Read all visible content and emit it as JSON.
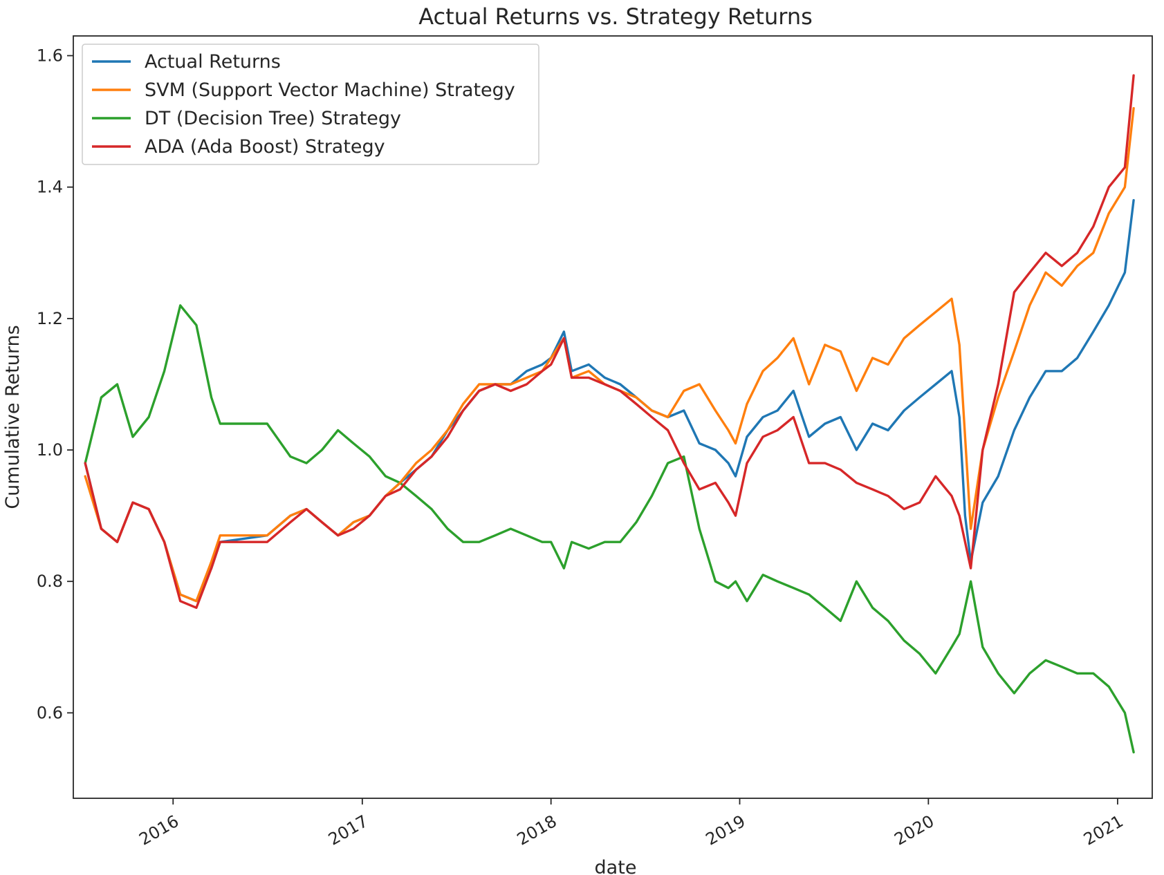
{
  "chart_data": {
    "type": "line",
    "title": "Actual Returns vs. Strategy Returns",
    "xlabel": "date",
    "ylabel": "Cumulative Returns",
    "xlim": [
      "2015-06-22",
      "2021-03-09"
    ],
    "ylim": [
      0.47,
      1.63
    ],
    "x_ticks": [
      "2016",
      "2017",
      "2018",
      "2019",
      "2020",
      "2021"
    ],
    "y_ticks": [
      "0.6",
      "0.8",
      "1.0",
      "1.2",
      "1.4",
      "1.6"
    ],
    "grid": false,
    "legend_position": "upper-left",
    "series": [
      {
        "name": "Actual Returns",
        "color": "#1f77b4",
        "x": [
          "2015-07-15",
          "2015-08-15",
          "2015-09-15",
          "2015-10-15",
          "2015-11-15",
          "2015-12-15",
          "2016-01-15",
          "2016-02-15",
          "2016-03-15",
          "2016-04-01",
          "2016-07-01",
          "2016-08-15",
          "2016-09-15",
          "2016-10-15",
          "2016-11-15",
          "2016-12-15",
          "2017-01-15",
          "2017-02-15",
          "2017-03-15",
          "2017-04-15",
          "2017-05-15",
          "2017-06-15",
          "2017-07-15",
          "2017-08-15",
          "2017-09-15",
          "2017-10-15",
          "2017-11-15",
          "2017-12-15",
          "2018-01-01",
          "2018-01-26",
          "2018-02-10",
          "2018-03-15",
          "2018-04-15",
          "2018-05-15",
          "2018-06-15",
          "2018-07-15",
          "2018-08-15",
          "2018-09-15",
          "2018-10-15",
          "2018-11-15",
          "2018-12-10",
          "2018-12-24",
          "2019-01-15",
          "2019-02-15",
          "2019-03-15",
          "2019-04-15",
          "2019-05-15",
          "2019-06-15",
          "2019-07-15",
          "2019-08-15",
          "2019-09-15",
          "2019-10-15",
          "2019-11-15",
          "2019-12-15",
          "2020-01-15",
          "2020-02-15",
          "2020-03-01",
          "2020-03-12",
          "2020-03-23",
          "2020-04-15",
          "2020-05-15",
          "2020-06-15",
          "2020-07-15",
          "2020-08-15",
          "2020-09-15",
          "2020-10-15",
          "2020-11-15",
          "2020-12-15",
          "2021-01-15",
          "2021-02-01"
        ],
        "y": [
          0.98,
          0.88,
          0.86,
          0.92,
          0.91,
          0.86,
          0.78,
          0.77,
          0.82,
          0.86,
          0.87,
          0.9,
          0.91,
          0.89,
          0.87,
          0.89,
          0.9,
          0.93,
          0.95,
          0.97,
          0.99,
          1.03,
          1.06,
          1.09,
          1.1,
          1.1,
          1.12,
          1.13,
          1.14,
          1.18,
          1.12,
          1.13,
          1.11,
          1.1,
          1.08,
          1.06,
          1.05,
          1.06,
          1.01,
          1.0,
          0.98,
          0.96,
          1.02,
          1.05,
          1.06,
          1.09,
          1.02,
          1.04,
          1.05,
          1.0,
          1.04,
          1.03,
          1.06,
          1.08,
          1.1,
          1.12,
          1.05,
          0.9,
          0.83,
          0.92,
          0.96,
          1.03,
          1.08,
          1.12,
          1.12,
          1.14,
          1.18,
          1.22,
          1.27,
          1.38
        ]
      },
      {
        "name": "SVM (Support Vector Machine) Strategy",
        "color": "#ff7f0e",
        "x": [
          "2015-07-15",
          "2015-08-15",
          "2015-09-15",
          "2015-10-15",
          "2015-11-15",
          "2015-12-15",
          "2016-01-15",
          "2016-02-15",
          "2016-03-15",
          "2016-04-01",
          "2016-07-01",
          "2016-08-15",
          "2016-09-15",
          "2016-10-15",
          "2016-11-15",
          "2016-12-15",
          "2017-01-15",
          "2017-02-15",
          "2017-03-15",
          "2017-04-15",
          "2017-05-15",
          "2017-06-15",
          "2017-07-15",
          "2017-08-15",
          "2017-09-15",
          "2017-10-15",
          "2017-11-15",
          "2017-12-15",
          "2018-01-01",
          "2018-01-26",
          "2018-02-10",
          "2018-03-15",
          "2018-04-15",
          "2018-05-15",
          "2018-06-15",
          "2018-07-15",
          "2018-08-15",
          "2018-09-15",
          "2018-10-15",
          "2018-11-15",
          "2018-12-10",
          "2018-12-24",
          "2019-01-15",
          "2019-02-15",
          "2019-03-15",
          "2019-04-15",
          "2019-05-15",
          "2019-06-15",
          "2019-07-15",
          "2019-08-15",
          "2019-09-15",
          "2019-10-15",
          "2019-11-15",
          "2019-12-15",
          "2020-01-15",
          "2020-02-15",
          "2020-03-01",
          "2020-03-12",
          "2020-03-23",
          "2020-04-15",
          "2020-05-15",
          "2020-06-15",
          "2020-07-15",
          "2020-08-15",
          "2020-09-15",
          "2020-10-15",
          "2020-11-15",
          "2020-12-15",
          "2021-01-15",
          "2021-02-01"
        ],
        "y": [
          0.96,
          0.88,
          0.86,
          0.92,
          0.91,
          0.86,
          0.78,
          0.77,
          0.83,
          0.87,
          0.87,
          0.9,
          0.91,
          0.89,
          0.87,
          0.89,
          0.9,
          0.93,
          0.95,
          0.98,
          1.0,
          1.03,
          1.07,
          1.1,
          1.1,
          1.1,
          1.11,
          1.12,
          1.14,
          1.17,
          1.11,
          1.12,
          1.1,
          1.09,
          1.08,
          1.06,
          1.05,
          1.09,
          1.1,
          1.06,
          1.03,
          1.01,
          1.07,
          1.12,
          1.14,
          1.17,
          1.1,
          1.16,
          1.15,
          1.09,
          1.14,
          1.13,
          1.17,
          1.19,
          1.21,
          1.23,
          1.16,
          1.02,
          0.88,
          1.0,
          1.08,
          1.15,
          1.22,
          1.27,
          1.25,
          1.28,
          1.3,
          1.36,
          1.4,
          1.52
        ]
      },
      {
        "name": "DT (Decision Tree) Strategy",
        "color": "#2ca02c",
        "x": [
          "2015-07-15",
          "2015-08-15",
          "2015-09-15",
          "2015-10-15",
          "2015-11-15",
          "2015-12-15",
          "2016-01-15",
          "2016-02-15",
          "2016-03-15",
          "2016-04-01",
          "2016-07-01",
          "2016-08-15",
          "2016-09-15",
          "2016-10-15",
          "2016-11-15",
          "2016-12-15",
          "2017-01-15",
          "2017-02-15",
          "2017-03-15",
          "2017-04-15",
          "2017-05-15",
          "2017-06-15",
          "2017-07-15",
          "2017-08-15",
          "2017-09-15",
          "2017-10-15",
          "2017-11-15",
          "2017-12-15",
          "2018-01-01",
          "2018-01-26",
          "2018-02-10",
          "2018-03-15",
          "2018-04-15",
          "2018-05-15",
          "2018-06-15",
          "2018-07-15",
          "2018-08-15",
          "2018-09-15",
          "2018-10-15",
          "2018-11-15",
          "2018-12-10",
          "2018-12-24",
          "2019-01-15",
          "2019-02-15",
          "2019-03-15",
          "2019-04-15",
          "2019-05-15",
          "2019-06-15",
          "2019-07-15",
          "2019-08-15",
          "2019-09-15",
          "2019-10-15",
          "2019-11-15",
          "2019-12-15",
          "2020-01-15",
          "2020-02-15",
          "2020-03-01",
          "2020-03-12",
          "2020-03-23",
          "2020-04-15",
          "2020-05-15",
          "2020-06-15",
          "2020-07-15",
          "2020-08-15",
          "2020-09-15",
          "2020-10-15",
          "2020-11-15",
          "2020-12-15",
          "2021-01-15",
          "2021-02-01"
        ],
        "y": [
          0.98,
          1.08,
          1.1,
          1.02,
          1.05,
          1.12,
          1.22,
          1.19,
          1.08,
          1.04,
          1.04,
          0.99,
          0.98,
          1.0,
          1.03,
          1.01,
          0.99,
          0.96,
          0.95,
          0.93,
          0.91,
          0.88,
          0.86,
          0.86,
          0.87,
          0.88,
          0.87,
          0.86,
          0.86,
          0.82,
          0.86,
          0.85,
          0.86,
          0.86,
          0.89,
          0.93,
          0.98,
          0.99,
          0.88,
          0.8,
          0.79,
          0.8,
          0.77,
          0.81,
          0.8,
          0.79,
          0.78,
          0.76,
          0.74,
          0.8,
          0.76,
          0.74,
          0.71,
          0.69,
          0.66,
          0.7,
          0.72,
          0.76,
          0.8,
          0.7,
          0.66,
          0.63,
          0.66,
          0.68,
          0.67,
          0.66,
          0.66,
          0.64,
          0.6,
          0.54
        ]
      },
      {
        "name": "ADA (Ada Boost) Strategy",
        "color": "#d62728",
        "x": [
          "2015-07-15",
          "2015-08-15",
          "2015-09-15",
          "2015-10-15",
          "2015-11-15",
          "2015-12-15",
          "2016-01-15",
          "2016-02-15",
          "2016-03-15",
          "2016-04-01",
          "2016-07-01",
          "2016-08-15",
          "2016-09-15",
          "2016-10-15",
          "2016-11-15",
          "2016-12-15",
          "2017-01-15",
          "2017-02-15",
          "2017-03-15",
          "2017-04-15",
          "2017-05-15",
          "2017-06-15",
          "2017-07-15",
          "2017-08-15",
          "2017-09-15",
          "2017-10-15",
          "2017-11-15",
          "2017-12-15",
          "2018-01-01",
          "2018-01-26",
          "2018-02-10",
          "2018-03-15",
          "2018-04-15",
          "2018-05-15",
          "2018-06-15",
          "2018-07-15",
          "2018-08-15",
          "2018-09-15",
          "2018-10-15",
          "2018-11-15",
          "2018-12-10",
          "2018-12-24",
          "2019-01-15",
          "2019-02-15",
          "2019-03-15",
          "2019-04-15",
          "2019-05-15",
          "2019-06-15",
          "2019-07-15",
          "2019-08-15",
          "2019-09-15",
          "2019-10-15",
          "2019-11-15",
          "2019-12-15",
          "2020-01-15",
          "2020-02-15",
          "2020-03-01",
          "2020-03-12",
          "2020-03-23",
          "2020-04-15",
          "2020-05-15",
          "2020-06-15",
          "2020-07-15",
          "2020-08-15",
          "2020-09-15",
          "2020-10-15",
          "2020-11-15",
          "2020-12-15",
          "2021-01-15",
          "2021-02-01"
        ],
        "y": [
          0.98,
          0.88,
          0.86,
          0.92,
          0.91,
          0.86,
          0.77,
          0.76,
          0.82,
          0.86,
          0.86,
          0.89,
          0.91,
          0.89,
          0.87,
          0.88,
          0.9,
          0.93,
          0.94,
          0.97,
          0.99,
          1.02,
          1.06,
          1.09,
          1.1,
          1.09,
          1.1,
          1.12,
          1.13,
          1.17,
          1.11,
          1.11,
          1.1,
          1.09,
          1.07,
          1.05,
          1.03,
          0.98,
          0.94,
          0.95,
          0.92,
          0.9,
          0.98,
          1.02,
          1.03,
          1.05,
          0.98,
          0.98,
          0.97,
          0.95,
          0.94,
          0.93,
          0.91,
          0.92,
          0.96,
          0.93,
          0.9,
          0.86,
          0.82,
          1.0,
          1.1,
          1.24,
          1.27,
          1.3,
          1.28,
          1.3,
          1.34,
          1.4,
          1.43,
          1.57
        ]
      }
    ]
  }
}
